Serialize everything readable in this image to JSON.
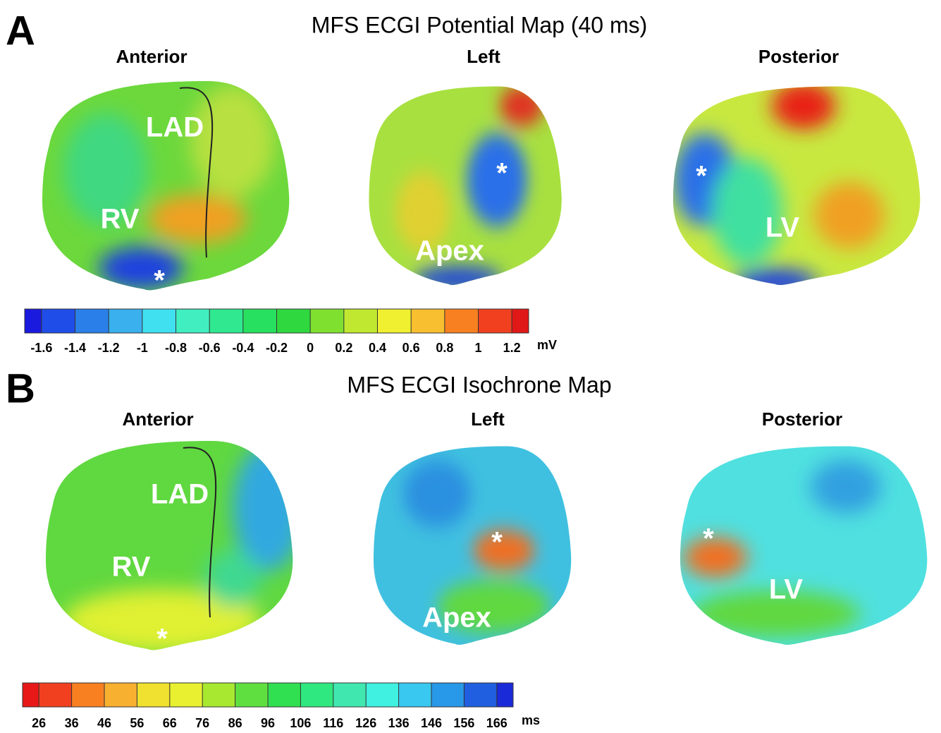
{
  "panels": [
    {
      "label": "A",
      "title": "MFS ECGI Potential Map (40 ms)",
      "views": [
        {
          "name": "Anterior",
          "annotations": [
            "LAD",
            "RV",
            "*"
          ]
        },
        {
          "name": "Left",
          "annotations": [
            "*",
            "Apex"
          ]
        },
        {
          "name": "Posterior",
          "annotations": [
            "*",
            "LV"
          ]
        }
      ],
      "colorbar": {
        "colors": [
          "#1a1adf",
          "#1f4de8",
          "#2a7fe8",
          "#3ab0ee",
          "#40e0f0",
          "#40eec0",
          "#30e890",
          "#28e060",
          "#30d840",
          "#80e030",
          "#c0e830",
          "#f0f030",
          "#f8c030",
          "#f88020",
          "#f04020",
          "#e01818"
        ],
        "lim": [
          -1.7,
          1.3
        ],
        "ticks": [
          -1.6,
          -1.4,
          -1.2,
          -1,
          -0.8,
          -0.6,
          -0.4,
          -0.2,
          0,
          0.2,
          0.4,
          0.6,
          0.8,
          1,
          1.2
        ],
        "unit": "mV"
      }
    },
    {
      "label": "B",
      "title": "MFS ECGI Isochrone Map",
      "views": [
        {
          "name": "Anterior",
          "annotations": [
            "LAD",
            "RV",
            "*"
          ]
        },
        {
          "name": "Left",
          "annotations": [
            "*",
            "Apex"
          ]
        },
        {
          "name": "Posterior",
          "annotations": [
            "*",
            "LV"
          ]
        }
      ],
      "colorbar": {
        "colors": [
          "#e81818",
          "#f04020",
          "#f88020",
          "#f8b030",
          "#f0e030",
          "#e8f030",
          "#a8e830",
          "#60e040",
          "#30e050",
          "#30e880",
          "#40e8b0",
          "#40f0e0",
          "#38c8f0",
          "#2898e8",
          "#2060e0",
          "#1a2ad8"
        ],
        "lim": [
          21,
          171
        ],
        "ticks": [
          26,
          36,
          46,
          56,
          66,
          76,
          86,
          96,
          106,
          116,
          126,
          136,
          146,
          156,
          166
        ],
        "unit": "ms"
      }
    }
  ]
}
